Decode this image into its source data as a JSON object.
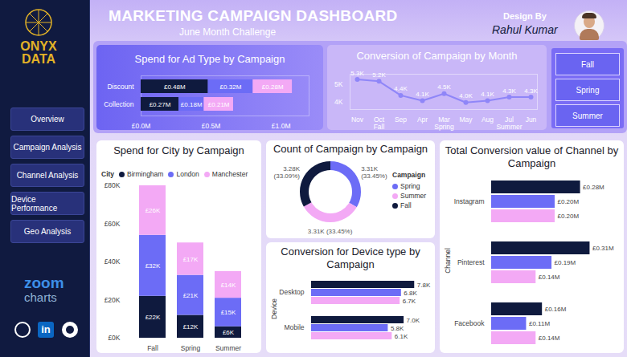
{
  "header": {
    "title": "MARKETING CAMPAIGN DASHBOARD",
    "subtitle": "June Month Challenge",
    "credit_label": "Design By",
    "credit_name": "Rahul Kumar"
  },
  "sidebar": {
    "logo": [
      "ONYX",
      "DATA"
    ],
    "nav": [
      "Overview",
      "Campaign Analysis",
      "Channel Analysis",
      "Device Performance",
      "Geo Analysis"
    ],
    "brand": [
      "zoom",
      "charts"
    ],
    "social": "in"
  },
  "slicer": [
    "Fall",
    "Spring",
    "Summer"
  ],
  "chart_data": [
    {
      "type": "bar",
      "title": "Spend for Ad Type by Campaign",
      "orientation": "horizontal",
      "stacked": true,
      "data_labels": true,
      "categories": [
        "Discount",
        "Collection"
      ],
      "series": [
        {
          "color": "#0f1a3e",
          "values": [
            0.48,
            0.27
          ],
          "value_labels": [
            "£0.48M",
            "£0.27M"
          ]
        },
        {
          "color": "#6c6cf6",
          "values": [
            0.32,
            0.18
          ],
          "value_labels": [
            "£0.32M",
            "£0.18M"
          ]
        },
        {
          "color": "#f3a9f5",
          "values": [
            0.28,
            0.21
          ],
          "value_labels": [
            "£0.28M",
            "£0.21M"
          ]
        }
      ],
      "xlim": [
        0,
        1.2
      ],
      "xticks": [
        {
          "value": 0,
          "label": "£0.0M"
        },
        {
          "value": 0.5,
          "label": "£0.5M"
        },
        {
          "value": 1,
          "label": "£1.0M"
        }
      ]
    },
    {
      "type": "line",
      "title": "Conversion of Campaign by Month",
      "data_labels": true,
      "marker": "circle",
      "color": "#8f86f8",
      "categories": [
        "Nov",
        "Oct",
        "Sep",
        "Apr",
        "Mar",
        "May",
        "Aug",
        "Jul",
        "Jun"
      ],
      "groups": [
        {
          "name": "Fall",
          "categories": [
            "Nov",
            "Oct",
            "Sep"
          ]
        },
        {
          "name": "Spring",
          "categories": [
            "Apr",
            "Mar",
            "May"
          ]
        },
        {
          "name": "Summer",
          "categories": [
            "Aug",
            "Jul",
            "Jun"
          ]
        }
      ],
      "values": [
        5.3,
        5.2,
        4.4,
        4.1,
        4.5,
        4.0,
        4.1,
        4.3,
        4.3
      ],
      "value_labels": [
        "5.3K",
        "5.2K",
        "4.4K",
        "4.1K",
        "4.5K",
        "4.0K",
        "4.1K",
        "4.3K",
        "4.3K"
      ],
      "ylim": [
        3.6,
        5.6
      ],
      "yticks": [
        {
          "value": 4,
          "label": "4K"
        },
        {
          "value": 5,
          "label": "5K"
        }
      ]
    },
    {
      "type": "bar",
      "title": "Spend for City by Campaign",
      "stacked": true,
      "data_labels": true,
      "legend": "top-left",
      "legend_title": "City",
      "categories": [
        "Fall",
        "Spring",
        "Summer"
      ],
      "series": [
        {
          "name": "Birmingham",
          "color": "#0f1a3e",
          "values": [
            22,
            12,
            6
          ],
          "value_labels": [
            "£22K",
            "£12K",
            "£6K"
          ]
        },
        {
          "name": "London",
          "color": "#6c6cf6",
          "values": [
            32,
            21,
            15
          ],
          "value_labels": [
            "£32K",
            "£21K",
            "£15K"
          ]
        },
        {
          "name": "Manchester",
          "color": "#f3a9f5",
          "values": [
            26,
            17,
            14
          ],
          "value_labels": [
            "£26K",
            "£17K",
            "£14K"
          ]
        }
      ],
      "ylim": [
        0,
        80
      ],
      "yticks": [
        {
          "value": 0,
          "label": "£0K"
        },
        {
          "value": 20,
          "label": "£20K"
        },
        {
          "value": 40,
          "label": "£40K"
        },
        {
          "value": 60,
          "label": "£60K"
        },
        {
          "value": 80,
          "label": "£80K"
        }
      ]
    },
    {
      "type": "donut",
      "title": "Count of Campaign by Campaign",
      "data_labels": true,
      "legend": "right",
      "legend_title": "Campaign",
      "categories": [
        "Spring",
        "Summer",
        "Fall"
      ],
      "values": [
        3.31,
        3.31,
        3.28
      ],
      "value_labels": [
        "3.31K (33.45%)",
        "3.31K (33.45%)",
        "3.28K (33.09%)"
      ],
      "colors": [
        "#6c6cf6",
        "#f3a9f5",
        "#0f1a3e"
      ]
    },
    {
      "type": "bar",
      "title": "Conversion for Device type by Campaign",
      "orientation": "horizontal",
      "data_labels": true,
      "tick_labels": "y",
      "y_label": "Device",
      "categories": [
        "Desktop",
        "Mobile"
      ],
      "series": [
        {
          "color": "#0f1a3e",
          "values": [
            7.8,
            7.0
          ],
          "value_labels": [
            "7.8K",
            "7.0K"
          ]
        },
        {
          "color": "#6c6cf6",
          "values": [
            6.8,
            5.8
          ],
          "value_labels": [
            "6.8K",
            "5.8K"
          ]
        },
        {
          "color": "#f3a9f5",
          "values": [
            6.7,
            6.1
          ],
          "value_labels": [
            "6.7K",
            "6.1K"
          ]
        }
      ],
      "xlim": [
        0,
        9
      ]
    },
    {
      "type": "bar",
      "title": "Total Conversion value of Channel by Campaign",
      "orientation": "horizontal",
      "data_labels": true,
      "tick_labels": "y",
      "y_label": "Channel",
      "categories": [
        "Instagram",
        "Pinterest",
        "Facebook"
      ],
      "series": [
        {
          "color": "#0f1a3e",
          "values": [
            0.28,
            0.31,
            0.16
          ],
          "value_labels": [
            "£0.28M",
            "£0.31M",
            "£0.16M"
          ]
        },
        {
          "color": "#6c6cf6",
          "values": [
            0.2,
            0.19,
            0.11
          ],
          "value_labels": [
            "£0.20M",
            "£0.19M",
            "£0.11M"
          ]
        },
        {
          "color": "#f3a9f5",
          "values": [
            0.2,
            0.14,
            0.14
          ],
          "value_labels": [
            "£0.20M",
            "£0.14M",
            "£0.14M"
          ]
        }
      ],
      "xlim": [
        0,
        0.4
      ]
    }
  ]
}
